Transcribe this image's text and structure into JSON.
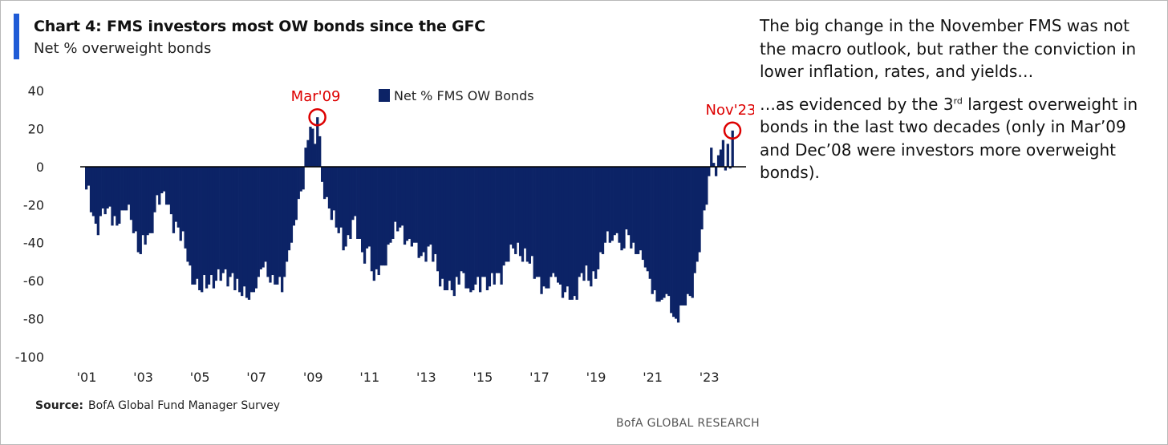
{
  "header": {
    "title": "Chart 4: FMS investors most OW bonds since the GFC",
    "subtitle": "Net % overweight bonds"
  },
  "commentary": {
    "paragraph1": "The big change in the November FMS was not the macro outlook, but rather the conviction in lower inflation, rates, and yields…",
    "paragraph2_prefix": "…as evidenced by the 3",
    "paragraph2_sup": "rd",
    "paragraph2_suffix": " largest overweight in bonds in the last two decades (only in Mar’09 and Dec’08 were investors more overweight bonds)."
  },
  "source": {
    "label": "Source:",
    "text": "BofA Global Fund Manager Survey"
  },
  "footer": "BofA GLOBAL RESEARCH",
  "colors": {
    "bars": "#0c2366",
    "accent": "#1f5bd6",
    "annotation": "#dd0000"
  },
  "chart_data": {
    "type": "bar",
    "title": "Chart 4: FMS investors most OW bonds since the GFC",
    "subtitle": "Net % overweight bonds",
    "ylim": [
      -100,
      40
    ],
    "yticks": [
      40,
      20,
      0,
      -20,
      -40,
      -60,
      -80,
      -100
    ],
    "xticks": [
      "'01",
      "'03",
      "'05",
      "'07",
      "'09",
      "'11",
      "'13",
      "'15",
      "'17",
      "'19",
      "'21",
      "'23"
    ],
    "x_start": "2001-01",
    "x_end": "2023-11",
    "grid": false,
    "legend_position": "top-center",
    "series": [
      {
        "name": "Net % FMS OW Bonds",
        "keypoints": [
          [
            "2001-01",
            -12
          ],
          [
            "2001-05",
            -30
          ],
          [
            "2001-10",
            -22
          ],
          [
            "2002-03",
            -30
          ],
          [
            "2002-07",
            -20
          ],
          [
            "2002-12",
            -46
          ],
          [
            "2003-04",
            -35
          ],
          [
            "2003-07",
            -15
          ],
          [
            "2003-11",
            -20
          ],
          [
            "2004-04",
            -32
          ],
          [
            "2004-08",
            -50
          ],
          [
            "2004-11",
            -62
          ],
          [
            "2005-02",
            -66
          ],
          [
            "2005-06",
            -57
          ],
          [
            "2005-10",
            -60
          ],
          [
            "2006-03",
            -56
          ],
          [
            "2006-06",
            -66
          ],
          [
            "2006-10",
            -70
          ],
          [
            "2007-02",
            -58
          ],
          [
            "2007-05",
            -50
          ],
          [
            "2007-09",
            -62
          ],
          [
            "2007-12",
            -66
          ],
          [
            "2008-03",
            -44
          ],
          [
            "2008-06",
            -28
          ],
          [
            "2008-09",
            -12
          ],
          [
            "2008-10",
            10
          ],
          [
            "2008-12",
            21
          ],
          [
            "2009-02",
            12
          ],
          [
            "2009-03",
            26
          ],
          [
            "2009-05",
            -8
          ],
          [
            "2009-08",
            -22
          ],
          [
            "2009-12",
            -35
          ],
          [
            "2010-03",
            -42
          ],
          [
            "2010-06",
            -28
          ],
          [
            "2010-10",
            -45
          ],
          [
            "2011-01",
            -42
          ],
          [
            "2011-03",
            -60
          ],
          [
            "2011-06",
            -52
          ],
          [
            "2011-10",
            -40
          ],
          [
            "2012-02",
            -32
          ],
          [
            "2012-06",
            -38
          ],
          [
            "2012-10",
            -48
          ],
          [
            "2013-02",
            -42
          ],
          [
            "2013-06",
            -55
          ],
          [
            "2013-10",
            -65
          ],
          [
            "2014-01",
            -68
          ],
          [
            "2014-04",
            -55
          ],
          [
            "2014-08",
            -66
          ],
          [
            "2015-01",
            -58
          ],
          [
            "2015-04",
            -63
          ],
          [
            "2015-08",
            -56
          ],
          [
            "2015-12",
            -50
          ],
          [
            "2016-04",
            -40
          ],
          [
            "2016-08",
            -50
          ],
          [
            "2016-12",
            -58
          ],
          [
            "2017-04",
            -64
          ],
          [
            "2017-08",
            -58
          ],
          [
            "2017-12",
            -66
          ],
          [
            "2018-03",
            -70
          ],
          [
            "2018-07",
            -56
          ],
          [
            "2018-11",
            -63
          ],
          [
            "2019-03",
            -45
          ],
          [
            "2019-07",
            -40
          ],
          [
            "2019-10",
            -35
          ],
          [
            "2019-12",
            -44
          ],
          [
            "2020-03",
            -36
          ],
          [
            "2020-07",
            -46
          ],
          [
            "2020-11",
            -55
          ],
          [
            "2021-02",
            -65
          ],
          [
            "2021-05",
            -70
          ],
          [
            "2021-08",
            -68
          ],
          [
            "2021-11",
            -80
          ],
          [
            "2022-02",
            -73
          ],
          [
            "2022-05",
            -68
          ],
          [
            "2022-08",
            -50
          ],
          [
            "2022-10",
            -33
          ],
          [
            "2022-12",
            -20
          ],
          [
            "2023-01",
            -5
          ],
          [
            "2023-02",
            10
          ],
          [
            "2023-03",
            2
          ],
          [
            "2023-04",
            -5
          ],
          [
            "2023-05",
            6
          ],
          [
            "2023-06",
            9
          ],
          [
            "2023-07",
            14
          ],
          [
            "2023-08",
            -2
          ],
          [
            "2023-09",
            12
          ],
          [
            "2023-10",
            -1
          ],
          [
            "2023-11",
            19
          ]
        ]
      }
    ],
    "annotations": [
      {
        "label": "Mar'09",
        "date": "2009-03",
        "value": 26
      },
      {
        "label": "Nov'23",
        "date": "2023-11",
        "value": 19
      }
    ]
  }
}
